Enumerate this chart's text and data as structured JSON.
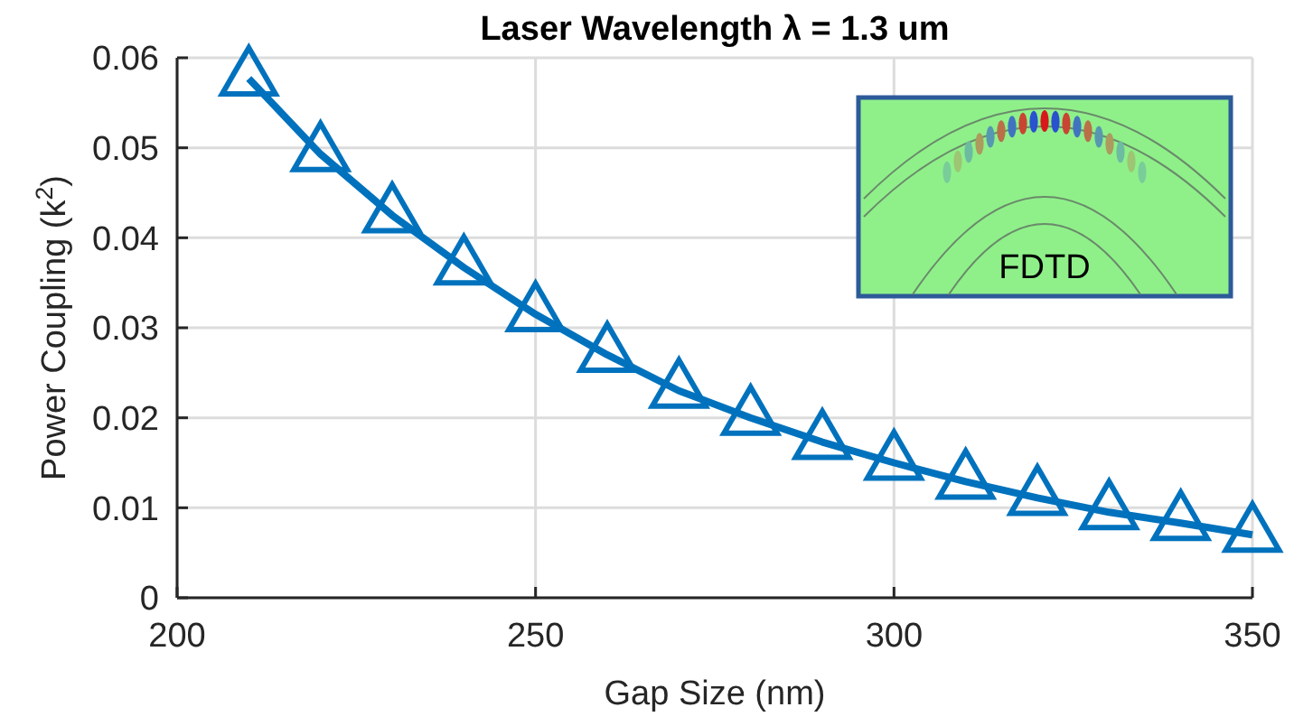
{
  "chart_data": {
    "type": "line",
    "title": "Laser Wavelength λ = 1.3 um",
    "xlabel": "Gap Size (nm)",
    "ylabel": "Power Coupling (k$^{2}$)",
    "x": [
      210,
      220,
      230,
      240,
      250,
      260,
      270,
      280,
      290,
      300,
      310,
      320,
      330,
      340,
      350
    ],
    "series": [
      {
        "color": "#0072bd",
        "values": [
          0.0577,
          0.0493,
          0.0425,
          0.0367,
          0.0315,
          0.027,
          0.023,
          0.02,
          0.0173,
          0.015,
          0.0129,
          0.0111,
          0.0095,
          0.0083,
          0.007
        ]
      }
    ],
    "xlim": [
      200,
      350
    ],
    "xticks": [
      200,
      250,
      300,
      350
    ],
    "ylim": [
      0,
      0.06
    ],
    "yticks": [
      0,
      0.01,
      0.02,
      0.03,
      0.04,
      0.05,
      0.06
    ],
    "grid": true,
    "marker": "triangle",
    "line_style": "solid",
    "annotations": [
      "FDTD"
    ]
  }
}
